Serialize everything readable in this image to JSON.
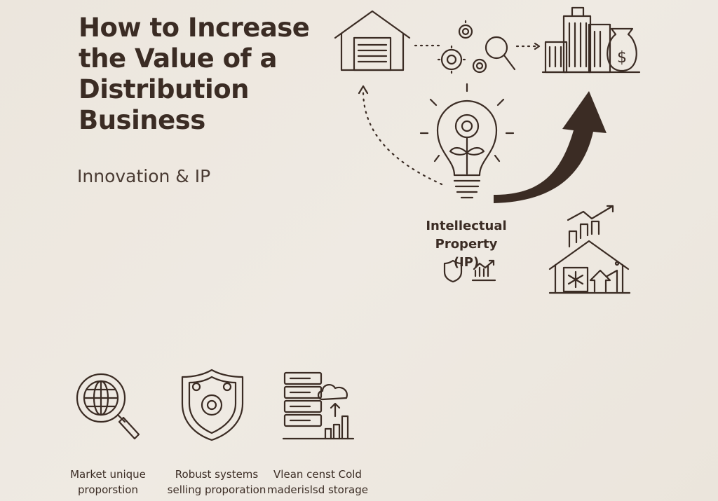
{
  "title": "How to Increase the Value of a Distribution Business",
  "subtitle": "Innovation & IP",
  "center": {
    "label_line1": "Intellectual",
    "label_line2": "Property (IP)"
  },
  "features": [
    {
      "line1": "Market unique",
      "line2": "proporstion",
      "icon": "globe-search-icon"
    },
    {
      "line1": "Robust systems",
      "line2": "selling proporation",
      "icon": "shield-gear-icon"
    },
    {
      "line1": "Vlean censt Cold",
      "line2": "maderislsd storage",
      "icon": "server-cloud-icon"
    }
  ],
  "colors": {
    "ink": "#3b2c24",
    "background": "#ece6dd"
  }
}
